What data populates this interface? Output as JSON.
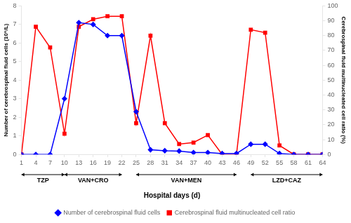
{
  "chart_data": {
    "type": "line",
    "x_label": "Hospital days (d)",
    "y_label": "Number of cerebrospinal fluid cells (10⁶/L)",
    "y2_label": "Cerebrospinal fluid multinucleated cell ratio (%)",
    "x": [
      1,
      4,
      7,
      10,
      13,
      16,
      19,
      22,
      25,
      28,
      31,
      34,
      37,
      40,
      43,
      46,
      49,
      52,
      55,
      58,
      61,
      64
    ],
    "xlim": [
      1,
      64
    ],
    "xticks": [
      1,
      4,
      7,
      10,
      13,
      16,
      19,
      22,
      25,
      28,
      31,
      34,
      37,
      40,
      43,
      46,
      49,
      52,
      55,
      58,
      61,
      64
    ],
    "ylim": [
      0,
      8
    ],
    "yticks": [
      0,
      1,
      2,
      3,
      4,
      5,
      6,
      7,
      8
    ],
    "y2lim": [
      0,
      100
    ],
    "y2ticks": [
      0,
      10,
      20,
      30,
      40,
      50,
      60,
      70,
      80,
      90,
      100
    ],
    "series": [
      {
        "name": "Number of cerebrospinal fluid cells",
        "color": "#0000ff",
        "marker": "diamond",
        "values": [
          0,
          0,
          0,
          3,
          7.1,
          7.0,
          6.4,
          6.4,
          2.3,
          0.25,
          0.2,
          0.18,
          0.1,
          0.1,
          0.05,
          0.05,
          0.55,
          0.55,
          0.05,
          0,
          0,
          0
        ]
      },
      {
        "name": "Cerebrospinal fluid multinucleated cell ratio",
        "color": "#ff0000",
        "marker": "square",
        "axis": "y2",
        "values": [
          0,
          86,
          72,
          14,
          86,
          91,
          93,
          93,
          21,
          80,
          21,
          7,
          8,
          13,
          0,
          0,
          84,
          82,
          6,
          0,
          0,
          0
        ]
      }
    ],
    "annotations": [
      {
        "label": "TZP",
        "x_start": 1,
        "x_end": 10
      },
      {
        "label": "VAN+CRO",
        "x_start": 10,
        "x_end": 22
      },
      {
        "label": "VAN+MEN",
        "x_start": 25,
        "x_end": 46
      },
      {
        "label": "LZD+CAZ",
        "x_start": 49,
        "x_end": 64
      }
    ],
    "legend": "bottom",
    "grid": false
  }
}
